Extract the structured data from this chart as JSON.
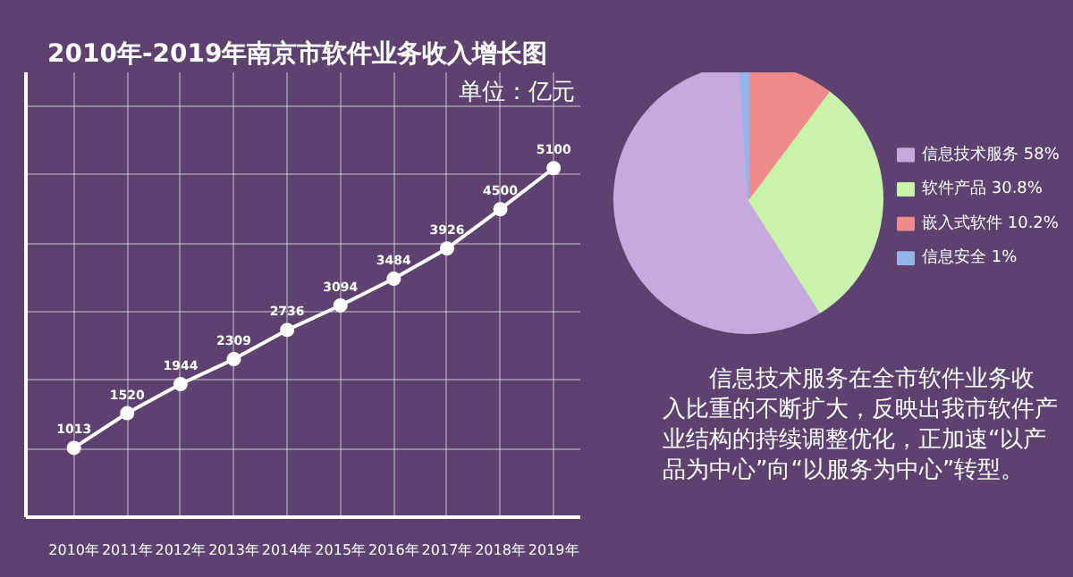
{
  "chart_data": [
    {
      "type": "line",
      "title": "2010年-2019年南京市软件业务收入增长图",
      "annotations": [
        "单位：亿元"
      ],
      "categories": [
        "2010年",
        "2011年",
        "2012年",
        "2013年",
        "2014年",
        "2015年",
        "2016年",
        "2017年",
        "2018年",
        "2019年"
      ],
      "series": [
        {
          "color": "#ffffff",
          "values": [
            1013,
            1520,
            1944,
            2309,
            2736,
            3094,
            3484,
            3926,
            4500,
            5100
          ]
        }
      ],
      "ylim": [
        0,
        6500
      ],
      "yticks": [
        {
          "value": 1000,
          "label": null
        },
        {
          "value": 2000,
          "label": null
        },
        {
          "value": 3000,
          "label": null
        },
        {
          "value": 4000,
          "label": null
        },
        {
          "value": 5000,
          "label": null
        },
        {
          "value": 6000,
          "label": null
        }
      ],
      "tick_labels": "x",
      "grid": true,
      "marker": "circle",
      "line_style": "solid",
      "data_labels": true
    },
    {
      "type": "pie",
      "categories": [
        "信息技术服务",
        "软件产品",
        "嵌入式软件",
        "信息安全"
      ],
      "values": [
        58,
        30.8,
        10.2,
        1
      ],
      "colors": [
        "#c6a9df",
        "#c9f2aa",
        "#f08b8b",
        "#92b5ec"
      ],
      "value_labels": [
        "58%",
        "30.8%",
        "10.2%",
        "1%"
      ],
      "legend": "right",
      "annotations": [
        "信息技术服务在全市软件业务收入比重的不断扩大，反映出我市软件产业结构的持续调整优化，正加速“以产品为中心”向“以服务为中心”转型。"
      ]
    }
  ]
}
